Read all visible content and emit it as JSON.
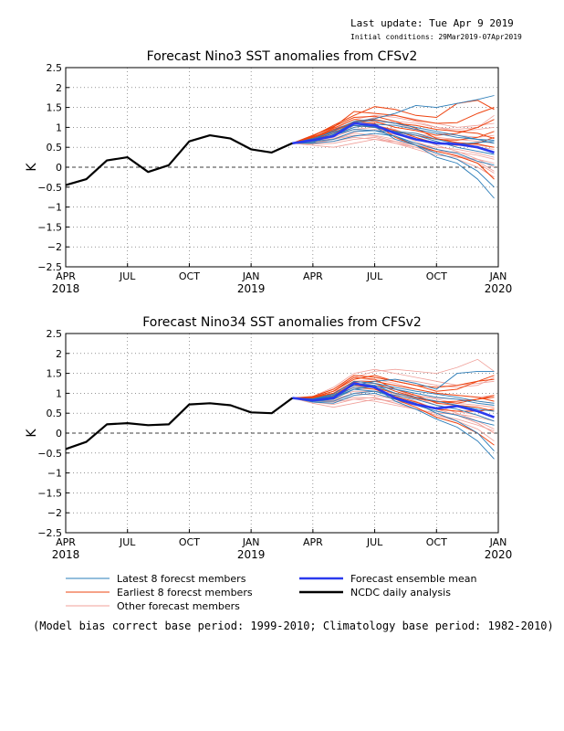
{
  "header": {
    "last_update": "Last update: Tue Apr 9 2019",
    "initial_conditions": "Initial conditions: 29Mar2019-07Apr2019"
  },
  "footnote": "(Model bias correct base period: 1999-2010; Climatology base period: 1982-2010)",
  "legend": {
    "latest": "Latest 8 forecst members",
    "earliest": "Earliest 8 forecst members",
    "other": "Other forecast members",
    "mean": "Forecast ensemble mean",
    "analysis": "NCDC daily analysis"
  },
  "colors": {
    "latest": "#2a7cb8",
    "earliest": "#ee4411",
    "other": "#f0a09a",
    "mean": "#2a3aee",
    "analysis": "#000000"
  },
  "chart_data": [
    {
      "type": "line",
      "title": "Forecast Nino3 SST anomalies from CFSv2",
      "ylabel": "K",
      "xlim": [
        0,
        21
      ],
      "ylim": [
        -2.5,
        2.5
      ],
      "y_ticks": [
        2.5,
        2,
        1.5,
        1,
        0.5,
        0,
        -0.5,
        -1,
        -1.5,
        -2,
        -2.5
      ],
      "x_ticks": [
        {
          "x": 0,
          "label": "APR",
          "year": "2018"
        },
        {
          "x": 3,
          "label": "JUL",
          "year": ""
        },
        {
          "x": 6,
          "label": "OCT",
          "year": ""
        },
        {
          "x": 9,
          "label": "JAN",
          "year": "2019"
        },
        {
          "x": 12,
          "label": "APR",
          "year": ""
        },
        {
          "x": 15,
          "label": "JUL",
          "year": ""
        },
        {
          "x": 18,
          "label": "OCT",
          "year": ""
        },
        {
          "x": 21,
          "label": "JAN",
          "year": "2020"
        }
      ],
      "analysis": {
        "x": [
          0,
          1,
          2,
          3,
          4,
          5,
          6,
          7,
          8,
          9,
          10,
          11
        ],
        "y": [
          -0.45,
          -0.3,
          0.17,
          0.25,
          -0.12,
          0.05,
          0.65,
          0.8,
          0.72,
          0.45,
          0.37,
          0.6
        ]
      },
      "ensemble_mean": {
        "x": [
          11,
          12,
          13,
          14,
          15,
          16,
          17,
          18,
          19,
          20,
          20.8
        ],
        "y": [
          0.6,
          0.68,
          0.78,
          1.1,
          1.05,
          0.85,
          0.7,
          0.6,
          0.58,
          0.5,
          0.37
        ]
      },
      "latest_members": [
        [
          0.6,
          0.68,
          0.92,
          1.15,
          1.22,
          1.35,
          1.55,
          1.5,
          1.6,
          1.7,
          1.8
        ],
        [
          0.6,
          0.62,
          0.82,
          1.05,
          1.0,
          0.9,
          0.85,
          0.7,
          0.58,
          0.62,
          0.65
        ],
        [
          0.6,
          0.66,
          0.8,
          0.95,
          0.92,
          0.78,
          0.55,
          0.35,
          0.2,
          -0.1,
          -0.5
        ],
        [
          0.6,
          0.72,
          0.88,
          1.05,
          1.02,
          0.7,
          0.55,
          0.25,
          0.1,
          -0.3,
          -0.78
        ],
        [
          0.6,
          0.65,
          0.7,
          0.9,
          0.92,
          0.88,
          0.8,
          0.65,
          0.5,
          0.4,
          0.32
        ],
        [
          0.6,
          0.7,
          0.8,
          1.0,
          1.08,
          1.05,
          0.95,
          0.85,
          0.75,
          0.7,
          0.68
        ],
        [
          0.6,
          0.6,
          0.65,
          0.78,
          0.85,
          0.78,
          0.6,
          0.45,
          0.35,
          0.15,
          0.05
        ],
        [
          0.6,
          0.66,
          0.85,
          1.12,
          1.18,
          1.1,
          1.0,
          0.9,
          0.8,
          0.7,
          0.6
        ]
      ],
      "earliest_members": [
        [
          0.6,
          0.78,
          1.05,
          1.3,
          1.52,
          1.45,
          1.3,
          1.25,
          1.6,
          1.68,
          1.45
        ],
        [
          0.6,
          0.8,
          1.0,
          1.4,
          1.35,
          1.3,
          1.18,
          1.1,
          1.12,
          1.35,
          1.5
        ],
        [
          0.6,
          0.75,
          0.98,
          1.2,
          1.15,
          1.0,
          0.92,
          0.8,
          0.85,
          1.0,
          1.2
        ],
        [
          0.6,
          0.72,
          0.9,
          1.15,
          1.1,
          0.75,
          0.55,
          0.4,
          0.28,
          0.1,
          -0.3
        ],
        [
          0.6,
          0.8,
          1.02,
          1.25,
          1.28,
          1.15,
          0.98,
          0.72,
          0.62,
          0.58,
          0.5
        ],
        [
          0.6,
          0.7,
          0.85,
          1.05,
          1.0,
          0.88,
          0.8,
          0.7,
          0.68,
          0.75,
          0.9
        ],
        [
          0.6,
          0.76,
          0.95,
          1.12,
          1.2,
          1.1,
          1.05,
          0.95,
          0.9,
          0.85,
          0.72
        ],
        [
          0.6,
          0.74,
          0.92,
          1.1,
          1.05,
          0.92,
          0.75,
          0.6,
          0.55,
          0.6,
          0.75
        ]
      ],
      "other_members": [
        [
          0.6,
          0.65,
          0.75,
          0.95,
          1.0,
          0.9,
          0.8,
          0.7,
          0.6,
          0.55,
          0.5
        ],
        [
          0.6,
          0.58,
          0.6,
          0.7,
          0.75,
          0.6,
          0.45,
          0.3,
          0.25,
          0.2,
          0.1
        ],
        [
          0.6,
          0.7,
          0.9,
          1.1,
          1.25,
          1.3,
          1.2,
          1.1,
          1.0,
          1.05,
          1.1
        ],
        [
          0.6,
          0.62,
          0.7,
          0.85,
          0.8,
          0.7,
          0.6,
          0.5,
          0.45,
          0.35,
          0.25
        ],
        [
          0.6,
          0.68,
          0.82,
          1.0,
          1.05,
          0.95,
          0.75,
          0.55,
          0.4,
          0.2,
          0.0
        ],
        [
          0.6,
          0.55,
          0.5,
          0.6,
          0.7,
          0.65,
          0.55,
          0.45,
          0.3,
          0.15,
          -0.1
        ],
        [
          0.6,
          0.72,
          0.95,
          1.2,
          1.3,
          1.25,
          1.15,
          1.0,
          0.9,
          0.95,
          1.0
        ],
        [
          0.6,
          0.66,
          0.8,
          0.95,
          0.92,
          0.82,
          0.7,
          0.62,
          0.55,
          0.5,
          0.45
        ],
        [
          0.6,
          0.6,
          0.7,
          0.8,
          0.78,
          0.65,
          0.5,
          0.35,
          0.2,
          0.0,
          -0.25
        ],
        [
          0.6,
          0.7,
          0.85,
          1.0,
          1.1,
          1.15,
          1.1,
          1.0,
          0.95,
          1.0,
          1.3
        ],
        [
          0.6,
          0.64,
          0.72,
          0.88,
          0.95,
          0.9,
          0.85,
          0.75,
          0.7,
          0.65,
          0.6
        ],
        [
          0.6,
          0.75,
          0.95,
          1.05,
          1.0,
          0.85,
          0.65,
          0.45,
          0.3,
          0.1,
          -0.15
        ],
        [
          0.6,
          0.62,
          0.65,
          0.75,
          0.7,
          0.6,
          0.5,
          0.4,
          0.38,
          0.3,
          0.2
        ],
        [
          0.6,
          0.7,
          0.9,
          1.15,
          1.2,
          1.1,
          0.95,
          0.85,
          0.8,
          0.75,
          0.8
        ]
      ]
    },
    {
      "type": "line",
      "title": "Forecast Nino34 SST anomalies from CFSv2",
      "ylabel": "K",
      "xlim": [
        0,
        21
      ],
      "ylim": [
        -2.5,
        2.5
      ],
      "y_ticks": [
        2.5,
        2,
        1.5,
        1,
        0.5,
        0,
        -0.5,
        -1,
        -1.5,
        -2,
        -2.5
      ],
      "x_ticks": [
        {
          "x": 0,
          "label": "APR",
          "year": "2018"
        },
        {
          "x": 3,
          "label": "JUL",
          "year": ""
        },
        {
          "x": 6,
          "label": "OCT",
          "year": ""
        },
        {
          "x": 9,
          "label": "JAN",
          "year": "2019"
        },
        {
          "x": 12,
          "label": "APR",
          "year": ""
        },
        {
          "x": 15,
          "label": "JUL",
          "year": ""
        },
        {
          "x": 18,
          "label": "OCT",
          "year": ""
        },
        {
          "x": 21,
          "label": "JAN",
          "year": "2020"
        }
      ],
      "analysis": {
        "x": [
          0,
          1,
          2,
          3,
          4,
          5,
          6,
          7,
          8,
          9,
          10,
          11
        ],
        "y": [
          -0.4,
          -0.22,
          0.22,
          0.25,
          0.2,
          0.22,
          0.72,
          0.75,
          0.7,
          0.52,
          0.5,
          0.88
        ]
      },
      "ensemble_mean": {
        "x": [
          11,
          12,
          13,
          14,
          15,
          16,
          17,
          18,
          19,
          20,
          20.8
        ],
        "y": [
          0.88,
          0.82,
          0.88,
          1.25,
          1.15,
          0.88,
          0.72,
          0.62,
          0.68,
          0.55,
          0.4
        ]
      },
      "latest_members": [
        [
          0.88,
          0.85,
          0.95,
          1.2,
          1.3,
          1.35,
          1.25,
          1.1,
          1.5,
          1.55,
          1.55
        ],
        [
          0.88,
          0.8,
          0.85,
          1.1,
          1.05,
          0.9,
          0.75,
          0.5,
          0.3,
          0.0,
          -0.45
        ],
        [
          0.88,
          0.82,
          0.9,
          1.15,
          1.15,
          0.8,
          0.6,
          0.35,
          0.15,
          -0.2,
          -0.65
        ],
        [
          0.88,
          0.85,
          0.92,
          1.25,
          1.2,
          1.0,
          0.9,
          0.8,
          0.7,
          0.6,
          0.55
        ],
        [
          0.88,
          0.78,
          0.75,
          0.95,
          1.0,
          0.85,
          0.7,
          0.55,
          0.45,
          0.3,
          0.2
        ],
        [
          0.88,
          0.84,
          0.9,
          1.1,
          1.18,
          1.1,
          1.0,
          0.9,
          0.85,
          0.75,
          0.7
        ],
        [
          0.88,
          0.8,
          0.8,
          1.0,
          1.05,
          0.95,
          0.85,
          0.7,
          0.6,
          0.45,
          0.3
        ],
        [
          0.88,
          0.86,
          0.98,
          1.3,
          1.25,
          1.15,
          1.05,
          0.98,
          0.9,
          0.8,
          0.75
        ]
      ],
      "earliest_members": [
        [
          0.88,
          0.9,
          1.05,
          1.35,
          1.45,
          1.3,
          1.2,
          1.05,
          1.1,
          1.3,
          1.45
        ],
        [
          0.88,
          0.92,
          1.1,
          1.45,
          1.4,
          1.3,
          1.2,
          1.15,
          1.2,
          1.3,
          1.35
        ],
        [
          0.88,
          0.88,
          1.0,
          1.3,
          1.25,
          1.05,
          0.9,
          0.8,
          0.75,
          0.85,
          0.95
        ],
        [
          0.88,
          0.85,
          0.95,
          1.25,
          1.15,
          0.85,
          0.65,
          0.4,
          0.25,
          0.0,
          -0.3
        ],
        [
          0.88,
          0.9,
          1.05,
          1.4,
          1.35,
          1.1,
          0.95,
          0.75,
          0.7,
          0.65,
          0.55
        ],
        [
          0.88,
          0.86,
          0.95,
          1.2,
          1.15,
          1.0,
          0.88,
          0.78,
          0.8,
          0.85,
          0.9
        ],
        [
          0.88,
          0.9,
          1.0,
          1.28,
          1.3,
          1.2,
          1.1,
          1.0,
          0.95,
          0.9,
          0.8
        ],
        [
          0.88,
          0.84,
          0.92,
          1.15,
          1.1,
          0.92,
          0.78,
          0.6,
          0.55,
          0.55,
          0.6
        ]
      ],
      "other_members": [
        [
          0.88,
          0.85,
          0.9,
          1.1,
          1.2,
          1.1,
          0.95,
          0.85,
          0.75,
          0.7,
          0.65
        ],
        [
          0.88,
          0.78,
          0.72,
          0.85,
          0.9,
          0.75,
          0.6,
          0.45,
          0.35,
          0.2,
          0.05
        ],
        [
          0.88,
          0.9,
          1.1,
          1.4,
          1.55,
          1.6,
          1.55,
          1.5,
          1.65,
          1.85,
          1.55
        ],
        [
          0.88,
          0.8,
          0.82,
          1.0,
          0.95,
          0.85,
          0.7,
          0.6,
          0.55,
          0.45,
          0.3
        ],
        [
          0.88,
          0.86,
          0.95,
          1.2,
          1.25,
          1.1,
          0.9,
          0.7,
          0.5,
          0.3,
          0.1
        ],
        [
          0.88,
          0.75,
          0.65,
          0.75,
          0.85,
          0.8,
          0.7,
          0.6,
          0.45,
          0.25,
          0.0
        ],
        [
          0.88,
          0.92,
          1.15,
          1.5,
          1.6,
          1.5,
          1.4,
          1.3,
          1.2,
          1.25,
          1.3
        ],
        [
          0.88,
          0.84,
          0.9,
          1.05,
          1.05,
          0.95,
          0.85,
          0.8,
          0.75,
          0.7,
          0.65
        ],
        [
          0.88,
          0.8,
          0.8,
          0.9,
          0.88,
          0.75,
          0.6,
          0.45,
          0.3,
          0.1,
          -0.2
        ],
        [
          0.88,
          0.88,
          1.0,
          1.2,
          1.3,
          1.35,
          1.3,
          1.2,
          1.15,
          1.2,
          1.4
        ],
        [
          0.88,
          0.82,
          0.85,
          1.0,
          1.05,
          1.0,
          0.95,
          0.88,
          0.85,
          0.8,
          0.75
        ],
        [
          0.88,
          0.9,
          1.05,
          1.2,
          1.15,
          0.98,
          0.8,
          0.6,
          0.45,
          0.25,
          0.0
        ],
        [
          0.88,
          0.8,
          0.78,
          0.85,
          0.8,
          0.7,
          0.6,
          0.5,
          0.48,
          0.4,
          0.3
        ],
        [
          0.88,
          0.9,
          1.0,
          1.3,
          1.35,
          1.25,
          1.1,
          1.0,
          0.95,
          0.9,
          0.95
        ]
      ]
    }
  ]
}
